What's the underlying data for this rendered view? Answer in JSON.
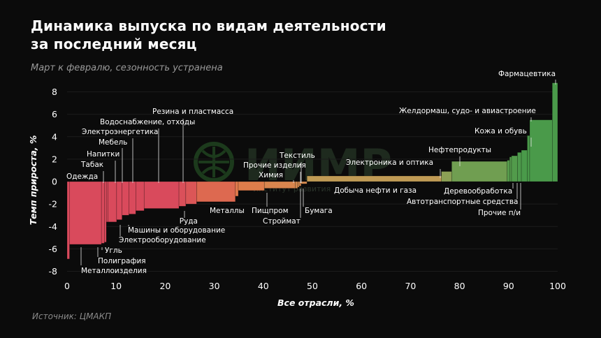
{
  "title_line1": "Динамика выпуска по видам деятельности",
  "title_line2": "за последний месяц",
  "subtitle": "Март к февралю, сезонность устранена",
  "source": "Источник: ЦМАКП",
  "watermark": "ИИМР",
  "watermark_sub": "Институт     развития",
  "chart_data": {
    "type": "bar",
    "xlabel": "Все отрасли, %",
    "ylabel": "Темп прироста, %",
    "xlim": [
      0,
      100
    ],
    "ylim": [
      -8,
      9
    ],
    "xticks": [
      0,
      10,
      20,
      30,
      40,
      50,
      60,
      70,
      80,
      90,
      100
    ],
    "yticks": [
      -8,
      -6,
      -4,
      -2,
      0,
      2,
      4,
      6,
      8
    ],
    "colors": {
      "negative": "#d94a5c",
      "mid": "#e07a4a",
      "zero": "#c99a55",
      "positive": "#4a9a4a"
    },
    "bars": [
      {
        "name": "Одежда",
        "x0": 0,
        "x1": 0.5,
        "value": -6.9
      },
      {
        "name": "Металлоизделия",
        "x0": 0.5,
        "x1": 7.0,
        "value": -5.6
      },
      {
        "name": "Угль",
        "x0": 7.0,
        "x1": 7.6,
        "value": -5.5
      },
      {
        "name": "Полиграфия",
        "x0": 7.6,
        "x1": 8.0,
        "value": -5.4
      },
      {
        "name": "Табак",
        "x0": 8.0,
        "x1": 8.3,
        "value": -3.6
      },
      {
        "name": "Напитки",
        "x0": 8.3,
        "x1": 10.1,
        "value": -3.6
      },
      {
        "name": "Мебель",
        "x0": 10.1,
        "x1": 11.2,
        "value": -3.4
      },
      {
        "name": "Электроэнергетика",
        "x0": 11.2,
        "x1": 12.6,
        "value": -3.0
      },
      {
        "name": "Машины и оборудование",
        "x0": 12.6,
        "x1": 14.0,
        "value": -2.9
      },
      {
        "name": "Электрооборудование",
        "x0": 14.0,
        "x1": 15.7,
        "value": -2.6
      },
      {
        "name": "Водоснабжение, отходы",
        "x0": 15.7,
        "x1": 22.8,
        "value": -2.4
      },
      {
        "name": "Руда",
        "x0": 22.8,
        "x1": 24.2,
        "value": -2.2
      },
      {
        "name": "Резина и пластмасса",
        "x0": 24.2,
        "x1": 26.4,
        "value": -2.0
      },
      {
        "name": "Металлы",
        "x0": 26.4,
        "x1": 34.3,
        "value": -1.8
      },
      {
        "name": "",
        "x0": 34.3,
        "x1": 34.9,
        "value": -1.3
      },
      {
        "name": "Пищпром",
        "x0": 34.9,
        "x1": 40.2,
        "value": -0.8
      },
      {
        "name": "Химия",
        "x0": 40.2,
        "x1": 46.5,
        "value": -0.6
      },
      {
        "name": "Прочие изделия",
        "x0": 46.5,
        "x1": 47.0,
        "value": -0.6
      },
      {
        "name": "Строймат",
        "x0": 47.0,
        "x1": 47.3,
        "value": -0.5
      },
      {
        "name": "Текстиль",
        "x0": 47.3,
        "x1": 47.7,
        "value": -0.4
      },
      {
        "name": "Бумага",
        "x0": 47.7,
        "x1": 48.9,
        "value": -0.2
      },
      {
        "name": "Добыча нефти и газа",
        "x0": 48.9,
        "x1": 76.3,
        "value": 0.5
      },
      {
        "name": "Электроника и оптика",
        "x0": 76.3,
        "x1": 78.4,
        "value": 0.9
      },
      {
        "name": "Нефтепродукты",
        "x0": 78.4,
        "x1": 89.7,
        "value": 1.8
      },
      {
        "name": "Деревообработка",
        "x0": 89.7,
        "x1": 90.2,
        "value": 1.9
      },
      {
        "name": "Автотранспортные средства",
        "x0": 90.2,
        "x1": 90.6,
        "value": 2.2
      },
      {
        "name": "Прочие п/и",
        "x0": 90.6,
        "x1": 91.8,
        "value": 2.3
      },
      {
        "name": "",
        "x0": 91.8,
        "x1": 92.6,
        "value": 2.6
      },
      {
        "name": "",
        "x0": 92.6,
        "x1": 93.8,
        "value": 2.8
      },
      {
        "name": "Кожа и обувь",
        "x0": 93.8,
        "x1": 94.3,
        "value": 4.1
      },
      {
        "name": "Желдормаш, судо- и авиастроение",
        "x0": 94.3,
        "x1": 98.9,
        "value": 5.5
      },
      {
        "name": "Фармацевтика",
        "x0": 98.9,
        "x1": 100,
        "value": 8.8
      }
    ]
  }
}
